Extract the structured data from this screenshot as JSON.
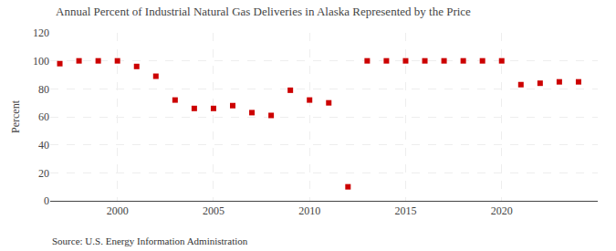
{
  "chart_data": {
    "type": "scatter",
    "title": "Annual Percent of Industrial Natural Gas Deliveries in Alaska Represented by the Price",
    "ylabel": "Percent",
    "annotations": [
      "Source: U.S. Energy Information Administration"
    ],
    "x": [
      1997,
      1998,
      1999,
      2000,
      2001,
      2002,
      2003,
      2004,
      2005,
      2006,
      2007,
      2008,
      2009,
      2010,
      2011,
      2012,
      2013,
      2014,
      2015,
      2016,
      2017,
      2018,
      2019,
      2020,
      2021,
      2022,
      2023,
      2024
    ],
    "values": [
      98,
      100,
      100,
      100,
      96,
      89,
      72,
      66,
      66,
      68,
      63,
      61,
      79,
      72,
      70,
      10,
      100,
      100,
      100,
      100,
      100,
      100,
      100,
      100,
      83,
      84,
      85,
      85
    ],
    "xlim": [
      1996.5,
      2025
    ],
    "xticks": [
      2000,
      2005,
      2010,
      2015,
      2020
    ],
    "ylim": [
      0,
      120
    ],
    "yticks": [
      0,
      20,
      40,
      60,
      80,
      100,
      120
    ],
    "color": "#cc0000",
    "marker": "square",
    "grid": true
  }
}
